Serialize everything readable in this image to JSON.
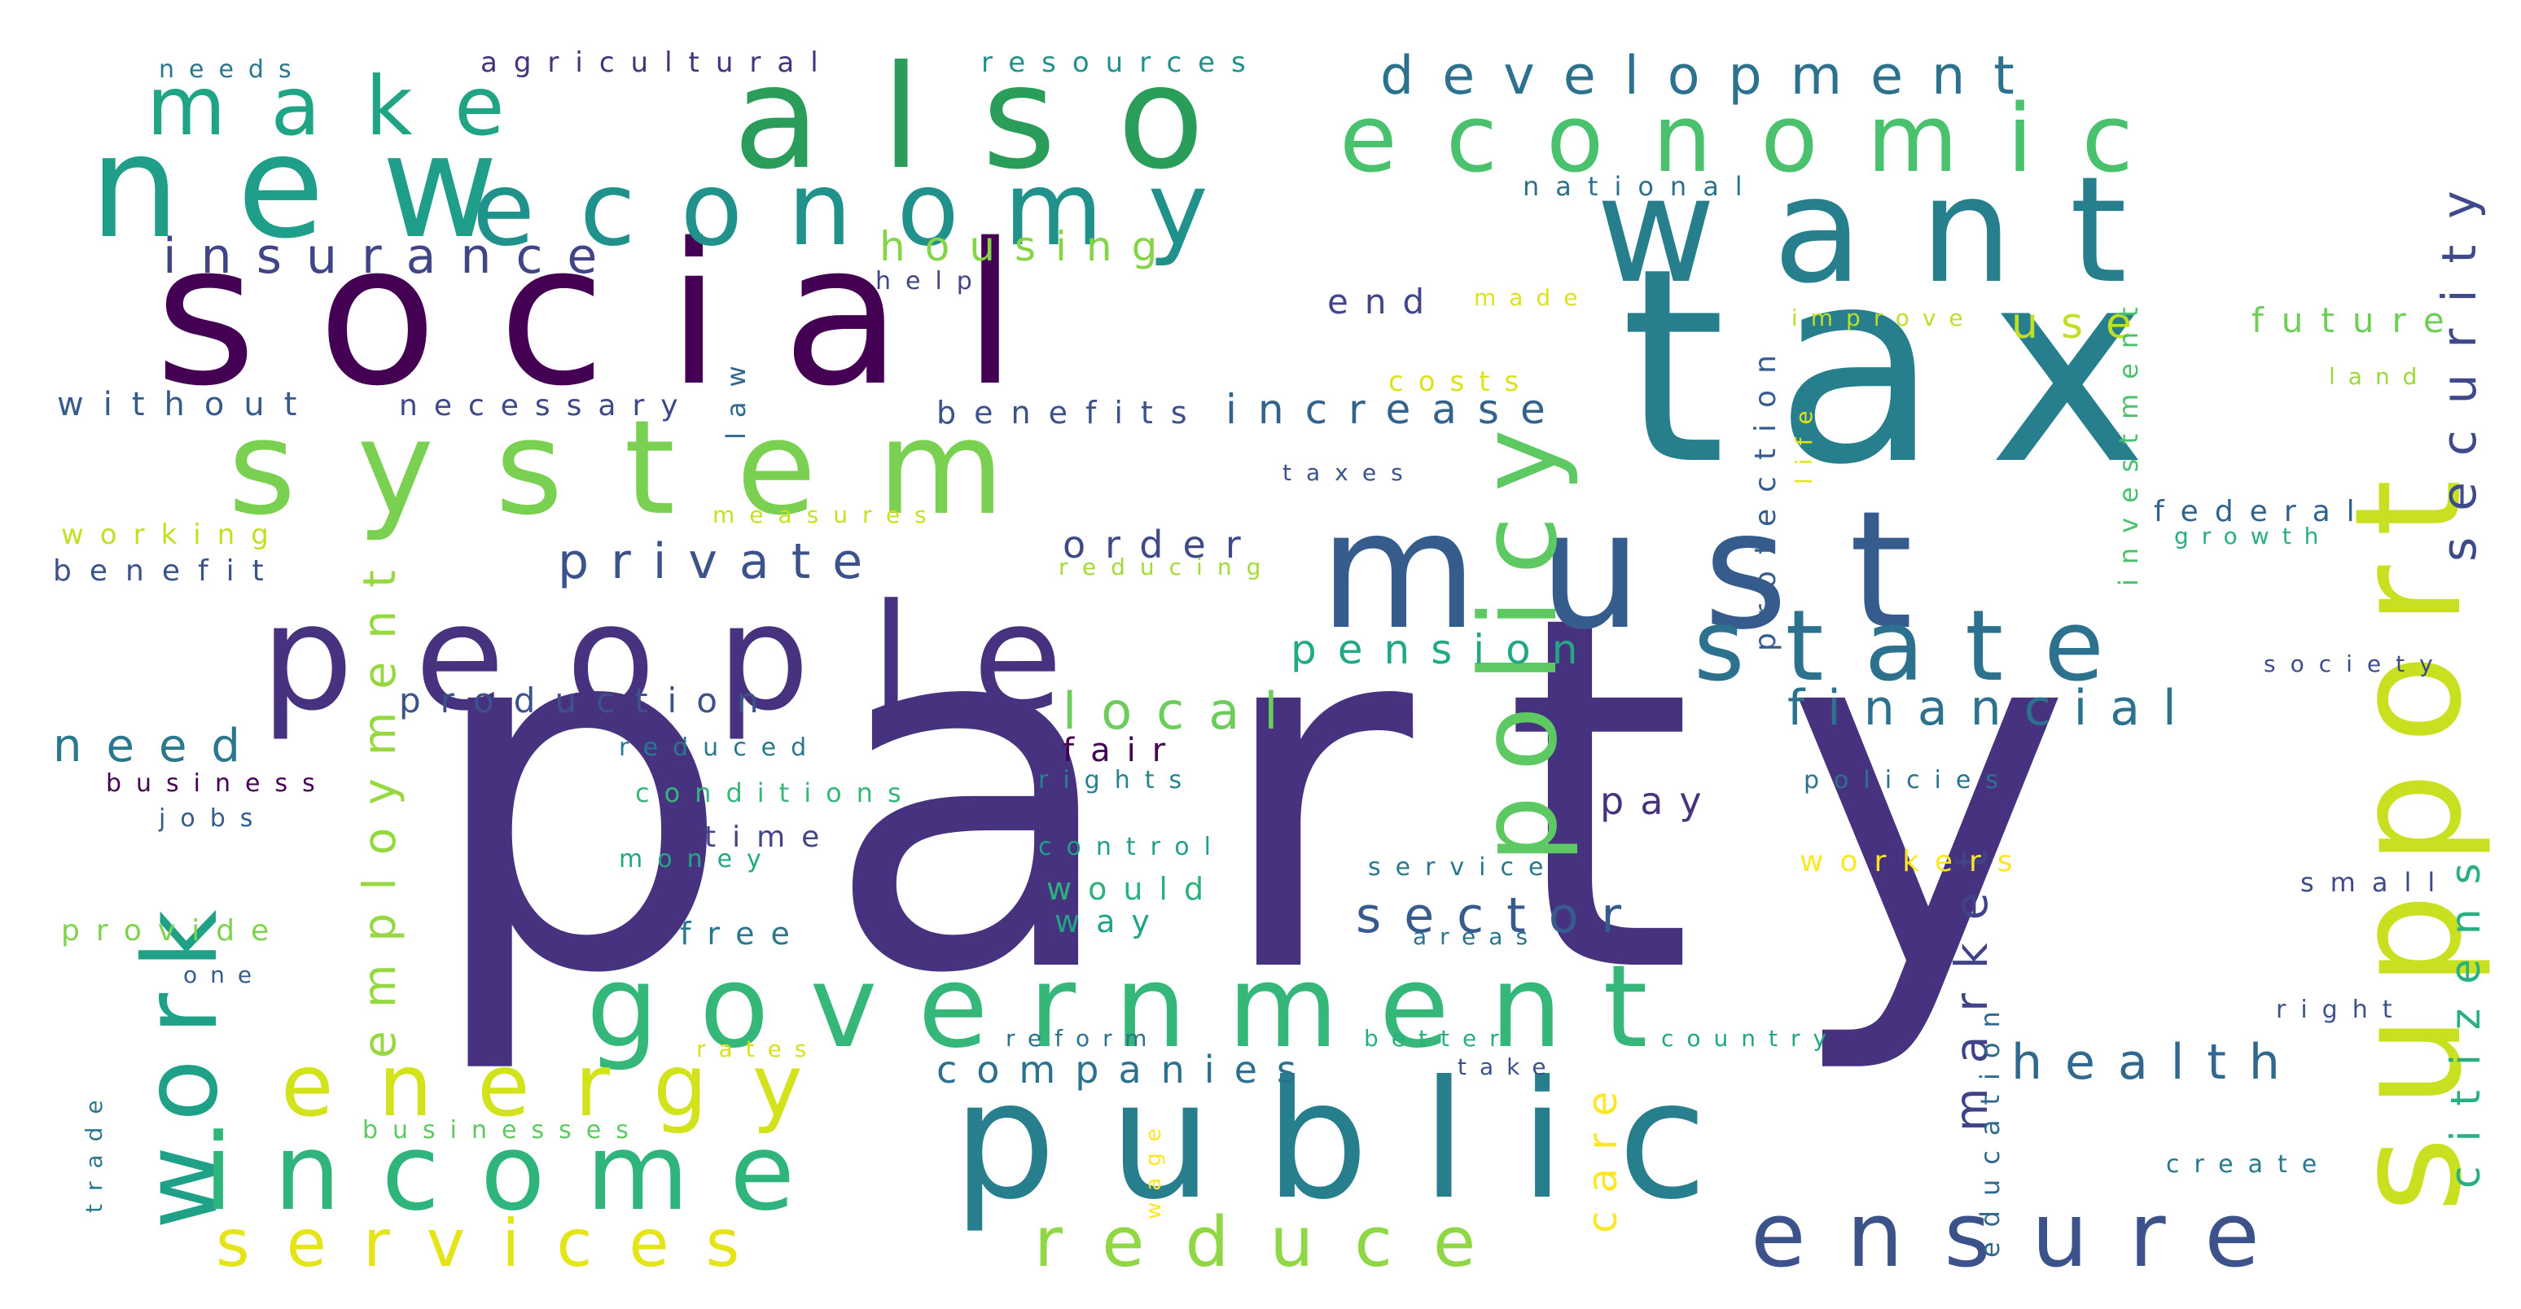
{
  "word_cloud": {
    "palette": [
      "#440154",
      "#46327e",
      "#365c8d",
      "#277f8e",
      "#1fa187",
      "#4ac16d",
      "#a0da39",
      "#fde725"
    ],
    "words": [
      {
        "text": "party",
        "color": "#46327e"
      },
      {
        "text": "tax",
        "color": "#277f8e"
      },
      {
        "text": "social",
        "color": "#440154"
      },
      {
        "text": "must",
        "color": "#365c8d"
      },
      {
        "text": "want",
        "color": "#277f8e"
      },
      {
        "text": "public",
        "color": "#277f8e"
      },
      {
        "text": "people",
        "color": "#46327e"
      },
      {
        "text": "support",
        "color": "#c8e020"
      },
      {
        "text": "system",
        "color": "#7ad151"
      },
      {
        "text": "government",
        "color": "#35b779"
      },
      {
        "text": "new",
        "color": "#1f9e89"
      },
      {
        "text": "also",
        "color": "#2a9d5b"
      },
      {
        "text": "economy",
        "color": "#21918c"
      },
      {
        "text": "economic",
        "color": "#4ac16d"
      },
      {
        "text": "policy",
        "color": "#5ec962"
      },
      {
        "text": "work",
        "color": "#1fa187"
      },
      {
        "text": "income",
        "color": "#2fb47c"
      },
      {
        "text": "state",
        "color": "#2c728e"
      },
      {
        "text": "ensure",
        "color": "#3b528b"
      },
      {
        "text": "energy",
        "color": "#d2e21b"
      },
      {
        "text": "make",
        "color": "#20a486"
      },
      {
        "text": "reduce",
        "color": "#8fd744"
      },
      {
        "text": "services",
        "color": "#e5e419"
      },
      {
        "text": "development",
        "color": "#2c728e"
      },
      {
        "text": "insurance",
        "color": "#414487"
      },
      {
        "text": "employment",
        "color": "#95d840"
      },
      {
        "text": "security",
        "color": "#3e4a89"
      },
      {
        "text": "financial",
        "color": "#2c728e"
      },
      {
        "text": "citizens",
        "color": "#2ab07f"
      },
      {
        "text": "private",
        "color": "#3b528b"
      },
      {
        "text": "health",
        "color": "#31688e"
      },
      {
        "text": "market",
        "color": "#404387"
      },
      {
        "text": "sector",
        "color": "#365c8d"
      },
      {
        "text": "local",
        "color": "#6ccd5a"
      },
      {
        "text": "increase",
        "color": "#33628d"
      },
      {
        "text": "housing",
        "color": "#86d549"
      },
      {
        "text": "pension",
        "color": "#22a884"
      },
      {
        "text": "companies",
        "color": "#2c728e"
      },
      {
        "text": "need",
        "color": "#2a788e"
      },
      {
        "text": "production",
        "color": "#3b528b"
      },
      {
        "text": "order",
        "color": "#3e4989"
      },
      {
        "text": "care",
        "color": "#fbe723"
      },
      {
        "text": "future",
        "color": "#6ece58"
      },
      {
        "text": "use",
        "color": "#c0df25"
      },
      {
        "text": "end",
        "color": "#404688"
      },
      {
        "text": "without",
        "color": "#365c8d"
      },
      {
        "text": "necessary",
        "color": "#3e4989"
      },
      {
        "text": "benefits",
        "color": "#3b528b"
      },
      {
        "text": "working",
        "color": "#c2df23"
      },
      {
        "text": "benefit",
        "color": "#3b528b"
      },
      {
        "text": "provide",
        "color": "#7fd34e"
      },
      {
        "text": "protection",
        "color": "#365c8d"
      },
      {
        "text": "investment",
        "color": "#4ac16d"
      },
      {
        "text": "education",
        "color": "#31688e"
      },
      {
        "text": "pay",
        "color": "#46327e"
      },
      {
        "text": "would",
        "color": "#2db27d"
      },
      {
        "text": "free",
        "color": "#2a788e"
      },
      {
        "text": "way",
        "color": "#20a386"
      },
      {
        "text": "fair",
        "color": "#440154"
      },
      {
        "text": "time",
        "color": "#414487"
      },
      {
        "text": "workers",
        "color": "#fde725"
      },
      {
        "text": "federal",
        "color": "#33638d"
      },
      {
        "text": "national",
        "color": "#2c728e"
      },
      {
        "text": "small",
        "color": "#3e4a89"
      },
      {
        "text": "costs",
        "color": "#dde318"
      },
      {
        "text": "law",
        "color": "#31688e"
      },
      {
        "text": "needs",
        "color": "#2a788e"
      },
      {
        "text": "agricultural",
        "color": "#46327e"
      },
      {
        "text": "resources",
        "color": "#21918c"
      },
      {
        "text": "help",
        "color": "#404688"
      },
      {
        "text": "made",
        "color": "#dde318"
      },
      {
        "text": "improve",
        "color": "#bddf26"
      },
      {
        "text": "land",
        "color": "#9bd93c"
      },
      {
        "text": "life",
        "color": "#e2e418"
      },
      {
        "text": "taxes",
        "color": "#3b528b"
      },
      {
        "text": "measures",
        "color": "#c8e020"
      },
      {
        "text": "reducing",
        "color": "#a2da37"
      },
      {
        "text": "growth",
        "color": "#29af7f"
      },
      {
        "text": "society",
        "color": "#3e4a89"
      },
      {
        "text": "reduced",
        "color": "#2a788e"
      },
      {
        "text": "conditions",
        "color": "#35b779"
      },
      {
        "text": "rights",
        "color": "#25838e"
      },
      {
        "text": "policies",
        "color": "#2c728e"
      },
      {
        "text": "business",
        "color": "#440154"
      },
      {
        "text": "jobs",
        "color": "#365c8d"
      },
      {
        "text": "money",
        "color": "#22a884"
      },
      {
        "text": "control",
        "color": "#1f9e89"
      },
      {
        "text": "service",
        "color": "#2a788e"
      },
      {
        "text": "areas",
        "color": "#2c728e"
      },
      {
        "text": "one",
        "color": "#365c8d"
      },
      {
        "text": "reform",
        "color": "#2c728e"
      },
      {
        "text": "better",
        "color": "#29af7f"
      },
      {
        "text": "country",
        "color": "#21a685"
      },
      {
        "text": "right",
        "color": "#3b528b"
      },
      {
        "text": "rates",
        "color": "#d5e21a"
      },
      {
        "text": "take",
        "color": "#3b528b"
      },
      {
        "text": "trade",
        "color": "#2a788e"
      },
      {
        "text": "businesses",
        "color": "#5ec962"
      },
      {
        "text": "wage",
        "color": "#fde725"
      },
      {
        "text": "create",
        "color": "#2a788e"
      }
    ]
  }
}
